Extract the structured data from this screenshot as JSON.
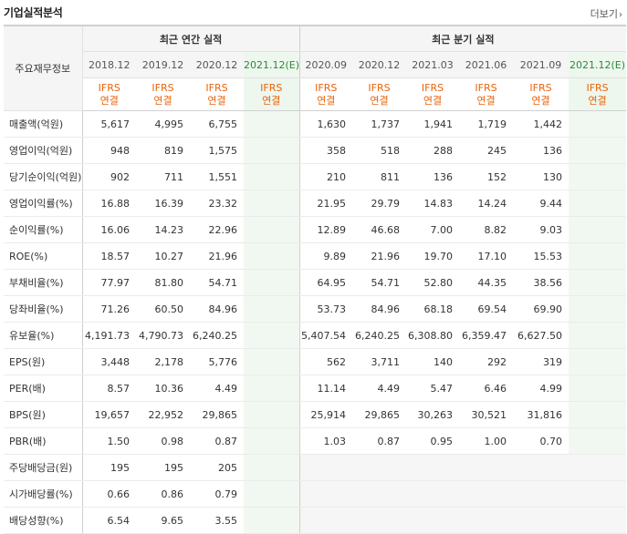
{
  "title": "기업실적분석",
  "more_label": "더보기",
  "more_arrow": "›",
  "head_label": "주요재무정보",
  "groups": {
    "annual": "최근 연간 실적",
    "quarter": "최근 분기 실적"
  },
  "periods": {
    "annual": [
      "2018.12",
      "2019.12",
      "2020.12",
      "2021.12(E)"
    ],
    "quarter": [
      "2020.09",
      "2020.12",
      "2021.03",
      "2021.06",
      "2021.09",
      "2021.12(E)"
    ]
  },
  "basis": {
    "line1": "IFRS",
    "line2": "연결"
  },
  "rows": [
    {
      "label": "매출액(억원)",
      "annual": [
        "5,617",
        "4,995",
        "6,755",
        ""
      ],
      "quarter": [
        "1,630",
        "1,737",
        "1,941",
        "1,719",
        "1,442",
        ""
      ]
    },
    {
      "label": "영업이익(억원)",
      "annual": [
        "948",
        "819",
        "1,575",
        ""
      ],
      "quarter": [
        "358",
        "518",
        "288",
        "245",
        "136",
        ""
      ]
    },
    {
      "label": "당기순이익(억원)",
      "annual": [
        "902",
        "711",
        "1,551",
        ""
      ],
      "quarter": [
        "210",
        "811",
        "136",
        "152",
        "130",
        ""
      ]
    },
    {
      "label": "영업이익률(%)",
      "annual": [
        "16.88",
        "16.39",
        "23.32",
        ""
      ],
      "quarter": [
        "21.95",
        "29.79",
        "14.83",
        "14.24",
        "9.44",
        ""
      ]
    },
    {
      "label": "순이익률(%)",
      "annual": [
        "16.06",
        "14.23",
        "22.96",
        ""
      ],
      "quarter": [
        "12.89",
        "46.68",
        "7.00",
        "8.82",
        "9.03",
        ""
      ]
    },
    {
      "label": "ROE(%)",
      "annual": [
        "18.57",
        "10.27",
        "21.96",
        ""
      ],
      "quarter": [
        "9.89",
        "21.96",
        "19.70",
        "17.10",
        "15.53",
        ""
      ]
    },
    {
      "label": "부채비율(%)",
      "annual": [
        "77.97",
        "81.80",
        "54.71",
        ""
      ],
      "quarter": [
        "64.95",
        "54.71",
        "52.80",
        "44.35",
        "38.56",
        ""
      ]
    },
    {
      "label": "당좌비율(%)",
      "annual": [
        "71.26",
        "60.50",
        "84.96",
        ""
      ],
      "quarter": [
        "53.73",
        "84.96",
        "68.18",
        "69.54",
        "69.90",
        ""
      ]
    },
    {
      "label": "유보율(%)",
      "annual": [
        "4,191.73",
        "4,790.73",
        "6,240.25",
        ""
      ],
      "quarter": [
        "5,407.54",
        "6,240.25",
        "6,308.80",
        "6,359.47",
        "6,627.50",
        ""
      ]
    },
    {
      "label": "EPS(원)",
      "annual": [
        "3,448",
        "2,178",
        "5,776",
        ""
      ],
      "quarter": [
        "562",
        "3,711",
        "140",
        "292",
        "319",
        ""
      ]
    },
    {
      "label": "PER(배)",
      "annual": [
        "8.57",
        "10.36",
        "4.49",
        ""
      ],
      "quarter": [
        "11.14",
        "4.49",
        "5.47",
        "6.46",
        "4.99",
        ""
      ]
    },
    {
      "label": "BPS(원)",
      "annual": [
        "19,657",
        "22,952",
        "29,865",
        ""
      ],
      "quarter": [
        "25,914",
        "29,865",
        "30,263",
        "30,521",
        "31,816",
        ""
      ]
    },
    {
      "label": "PBR(배)",
      "annual": [
        "1.50",
        "0.98",
        "0.87",
        ""
      ],
      "quarter": [
        "1.03",
        "0.87",
        "0.95",
        "1.00",
        "0.70",
        ""
      ]
    },
    {
      "label": "주당배당금(원)",
      "annual": [
        "195",
        "195",
        "205",
        ""
      ],
      "quarter": [
        "",
        "",
        "",
        "",
        "",
        ""
      ]
    },
    {
      "label": "시가배당률(%)",
      "annual": [
        "0.66",
        "0.86",
        "0.79",
        ""
      ],
      "quarter": [
        "",
        "",
        "",
        "",
        "",
        ""
      ]
    },
    {
      "label": "배당성향(%)",
      "annual": [
        "6.54",
        "9.65",
        "3.55",
        ""
      ],
      "quarter": [
        "",
        "",
        "",
        "",
        "",
        ""
      ]
    }
  ]
}
